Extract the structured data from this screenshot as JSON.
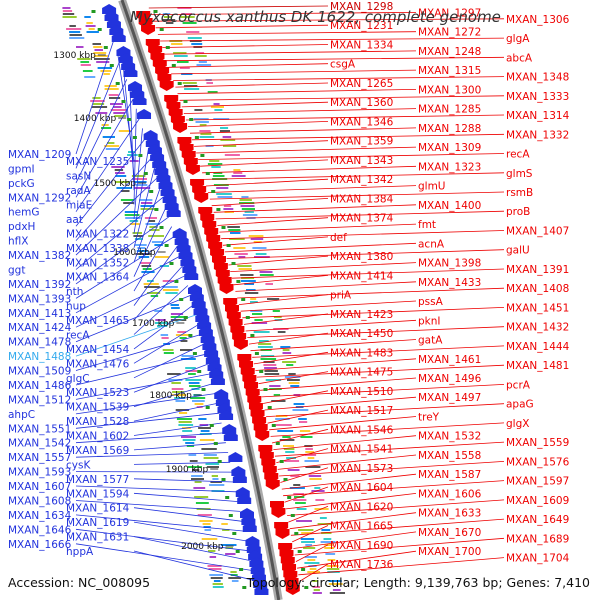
{
  "title": "Myxococcus xanthus DK 1622, complete genome",
  "footer": {
    "accession": "Accession: NC_008095",
    "stats": "Topology: circular; Length: 9,139,763 bp; Genes: 7,410"
  },
  "colors": {
    "forward": "#ee0000",
    "reverse": "#2233dd",
    "highlight": "#33aaee",
    "backbone": "#888888",
    "tick": "#229922"
  },
  "kbp_ticks": [
    "1300 kbp",
    "1400 kbp",
    "1500 kbp",
    "1600 kbp",
    "1700 kbp",
    "1800 kbp",
    "1900 kbp",
    "2000 kbp"
  ],
  "left_labels": [
    "MXAN_1209",
    "MXAN_1235",
    "gpmI",
    "sasN",
    "pckG",
    "radA",
    "MXAN_1292",
    "miaE",
    "hemG",
    "aat",
    "pdxH",
    "MXAN_1322",
    "hflX",
    "MXAN_1338",
    "MXAN_1382",
    "MXAN_1352",
    "ggt",
    "MXAN_1364",
    "MXAN_1392",
    "nth",
    "MXAN_1393",
    "hup",
    "MXAN_1413",
    "MXAN_1465",
    "MXAN_1424",
    "recA",
    "MXAN_1478",
    "MXAN_1454",
    "MXAN_1488",
    "MXAN_1476",
    "MXAN_1509",
    "glgC",
    "MXAN_1486",
    "MXAN_1523",
    "MXAN_1512",
    "MXAN_1539",
    "ahpC",
    "MXAN_1528",
    "MXAN_1551",
    "MXAN_1602",
    "MXAN_1542",
    "MXAN_1569",
    "MXAN_1557",
    "cysK",
    "MXAN_1593",
    "MXAN_1577",
    "MXAN_1607",
    "MXAN_1594",
    "MXAN_1608",
    "MXAN_1614",
    "MXAN_1634",
    "MXAN_1619",
    "MXAN_1646",
    "MXAN_1631",
    "MXAN_1666",
    "hppA"
  ],
  "right_labels": [
    "MXAN_1298",
    "MXAN_1297",
    "MXAN_1306",
    "MXAN_1231",
    "MXAN_1272",
    "glgA",
    "MXAN_1334",
    "MXAN_1248",
    "abcA",
    "csgA",
    "MXAN_1315",
    "MXAN_1348",
    "MXAN_1265",
    "MXAN_1300",
    "MXAN_1333",
    "MXAN_1360",
    "MXAN_1285",
    "MXAN_1314",
    "MXAN_1346",
    "MXAN_1288",
    "MXAN_1332",
    "MXAN_1359",
    "MXAN_1309",
    "recA",
    "MXAN_1343",
    "MXAN_1323",
    "glmS",
    "MXAN_1342",
    "glmU",
    "rsmB",
    "MXAN_1384",
    "MXAN_1400",
    "proB",
    "MXAN_1374",
    "fmt",
    "MXAN_1407",
    "def",
    "acnA",
    "galU",
    "MXAN_1380",
    "MXAN_1398",
    "MXAN_1391",
    "MXAN_1414",
    "MXAN_1433",
    "MXAN_1408",
    "priA",
    "pssA",
    "MXAN_1451",
    "MXAN_1423",
    "pknI",
    "MXAN_1432",
    "MXAN_1450",
    "gatA",
    "MXAN_1444",
    "MXAN_1483",
    "MXAN_1461",
    "MXAN_1481",
    "MXAN_1475",
    "MXAN_1496",
    "pcrA",
    "MXAN_1510",
    "MXAN_1497",
    "apaG",
    "MXAN_1517",
    "treY",
    "glgX",
    "MXAN_1546",
    "MXAN_1532",
    "MXAN_1559",
    "MXAN_1541",
    "MXAN_1558",
    "MXAN_1576",
    "MXAN_1573",
    "MXAN_1587",
    "MXAN_1597",
    "MXAN_1604",
    "MXAN_1606",
    "MXAN_1609",
    "MXAN_1620",
    "MXAN_1633",
    "MXAN_1649",
    "MXAN_1665",
    "MXAN_1670",
    "MXAN_1689",
    "MXAN_1690",
    "MXAN_1700",
    "MXAN_1704",
    "MXAN_1736"
  ]
}
